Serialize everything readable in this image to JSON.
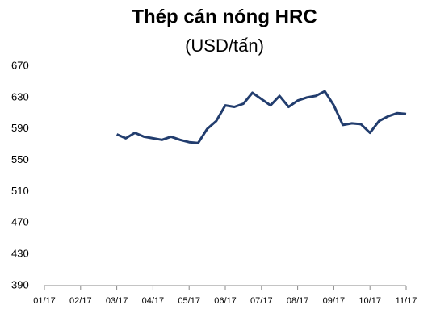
{
  "chart_data": {
    "type": "line",
    "title": "Thép cán nóng HRC",
    "subtitle": "(USD/tấn)",
    "categories": [
      "01/17",
      null,
      null,
      null,
      "02/17",
      null,
      null,
      null,
      "03/17",
      null,
      null,
      null,
      "04/17",
      null,
      null,
      null,
      "05/17",
      null,
      null,
      null,
      "06/17",
      null,
      null,
      null,
      "07/17",
      null,
      null,
      null,
      "08/17",
      null,
      null,
      null,
      "09/17",
      null,
      null,
      null,
      "10/17",
      null,
      null,
      null,
      "11/17"
    ],
    "series": [
      {
        "name": "HRC",
        "color": "#223d6e",
        "values": [
          null,
          null,
          null,
          null,
          null,
          null,
          null,
          null,
          583,
          578,
          585,
          580,
          578,
          576,
          580,
          576,
          573,
          572,
          590,
          600,
          620,
          618,
          622,
          636,
          628,
          620,
          632,
          618,
          626,
          630,
          632,
          638,
          620,
          595,
          597,
          596,
          585,
          600,
          606,
          610,
          609
        ]
      }
    ],
    "ylim": [
      390,
      670
    ],
    "yticks": [
      390,
      430,
      470,
      510,
      550,
      590,
      630,
      670
    ],
    "grid": false
  }
}
